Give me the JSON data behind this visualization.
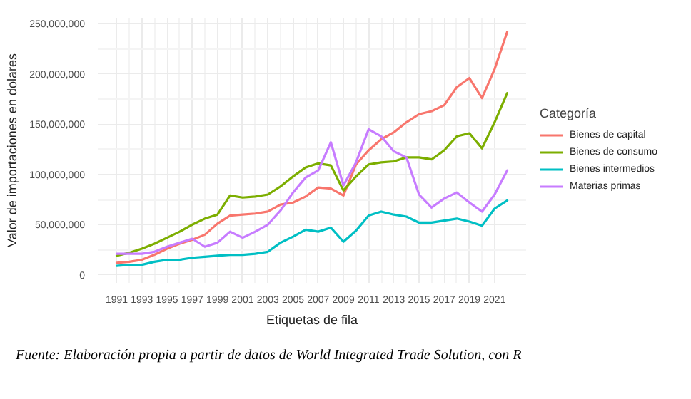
{
  "chart_data": {
    "type": "line",
    "xlabel": "Etiquetas de fila",
    "ylabel": "Valor de importaciones en dolares",
    "legend_title": "Categoría",
    "annotations": [
      "Fuente: Elaboración propia a partir de datos de World Integrated Trade Solution, con R"
    ],
    "x": [
      1991,
      1992,
      1993,
      1994,
      1995,
      1996,
      1997,
      1998,
      1999,
      2000,
      2001,
      2002,
      2003,
      2004,
      2005,
      2006,
      2007,
      2008,
      2009,
      2010,
      2011,
      2012,
      2013,
      2014,
      2015,
      2016,
      2017,
      2018,
      2019,
      2020,
      2021,
      2022
    ],
    "series": [
      {
        "name": "Bienes de capital",
        "color": "#f8766d",
        "values": [
          12000000,
          13000000,
          15000000,
          20000000,
          26000000,
          31000000,
          35000000,
          40000000,
          51000000,
          59000000,
          60000000,
          61000000,
          63000000,
          70000000,
          72000000,
          78000000,
          87000000,
          86000000,
          79000000,
          110000000,
          124000000,
          135000000,
          142000000,
          152000000,
          160000000,
          163000000,
          169000000,
          187000000,
          196000000,
          176000000,
          205000000,
          242000000
        ]
      },
      {
        "name": "Bienes de consumo",
        "color": "#7cae00",
        "values": [
          19000000,
          22000000,
          26000000,
          31000000,
          37000000,
          43000000,
          50000000,
          56000000,
          60000000,
          79000000,
          77000000,
          78000000,
          80000000,
          88000000,
          98000000,
          107000000,
          111000000,
          109000000,
          84000000,
          98000000,
          110000000,
          112000000,
          113000000,
          117000000,
          117000000,
          115000000,
          124000000,
          138000000,
          141000000,
          126000000,
          152000000,
          181000000
        ]
      },
      {
        "name": "Bienes intermedios",
        "color": "#00bfc4",
        "values": [
          9000000,
          10000000,
          10000000,
          13000000,
          15000000,
          15000000,
          17000000,
          18000000,
          19000000,
          20000000,
          20000000,
          21000000,
          23000000,
          32000000,
          38000000,
          45000000,
          43000000,
          47000000,
          33000000,
          44000000,
          59000000,
          63000000,
          60000000,
          58000000,
          52000000,
          52000000,
          54000000,
          56000000,
          53000000,
          49000000,
          66000000,
          74000000
        ]
      },
      {
        "name": "Materias primas",
        "color": "#c77cff",
        "values": [
          21000000,
          21000000,
          21000000,
          23000000,
          28000000,
          32000000,
          36000000,
          28000000,
          32000000,
          43000000,
          37000000,
          43000000,
          50000000,
          64000000,
          82000000,
          97000000,
          104000000,
          132000000,
          89000000,
          112000000,
          145000000,
          138000000,
          123000000,
          117000000,
          80000000,
          67000000,
          76000000,
          82000000,
          72000000,
          63000000,
          80000000,
          104000000
        ]
      }
    ],
    "xlim": [
      1989.5,
      2023.5
    ],
    "ylim": [
      -8000000,
      256000000
    ],
    "xticks": [
      1991,
      1993,
      1995,
      1997,
      1999,
      2001,
      2003,
      2005,
      2007,
      2009,
      2011,
      2013,
      2015,
      2017,
      2019,
      2021
    ],
    "yticks": [
      {
        "value": 0,
        "label": "0"
      },
      {
        "value": 50000000,
        "label": "50,000,000"
      },
      {
        "value": 100000000,
        "label": "100,000,000"
      },
      {
        "value": 150000000,
        "label": "150,000,000"
      },
      {
        "value": 200000000,
        "label": "200,000,000"
      },
      {
        "value": 250000000,
        "label": "250,000,000"
      }
    ],
    "grid": true,
    "legend": "right",
    "marker": "none",
    "line_style": "solid"
  }
}
